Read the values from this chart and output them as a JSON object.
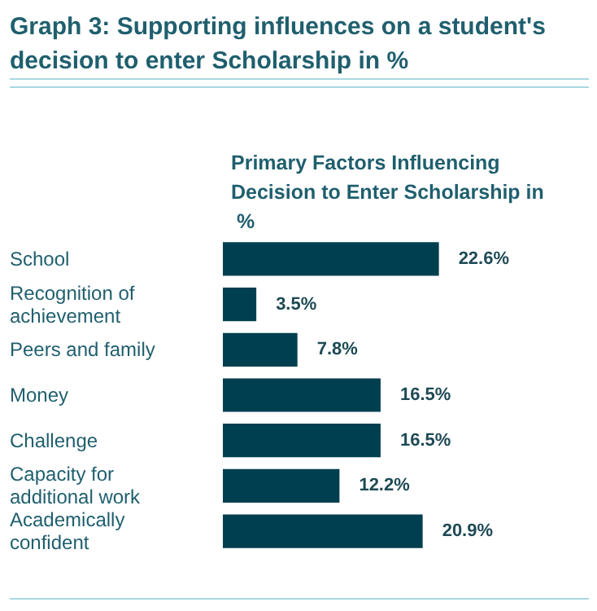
{
  "chart_data": {
    "type": "bar",
    "orientation": "horizontal",
    "title": "Graph 3: Supporting influences on a student's decision to enter Scholarship in %",
    "subtitle": "Primary Factors Influencing Decision to Enter Scholarship in %",
    "categories": [
      "School",
      "Recognition of achievement",
      "Peers and family",
      "Money",
      "Challenge",
      "Capacity for additional work",
      "Academically confident"
    ],
    "values": [
      22.6,
      3.5,
      7.8,
      16.5,
      16.5,
      12.2,
      20.9
    ],
    "value_labels": [
      "22.6%",
      "3.5%",
      "7.8%",
      "16.5%",
      "16.5%",
      "12.2%",
      "20.9%"
    ],
    "color": "#003f4f",
    "grid": false
  }
}
